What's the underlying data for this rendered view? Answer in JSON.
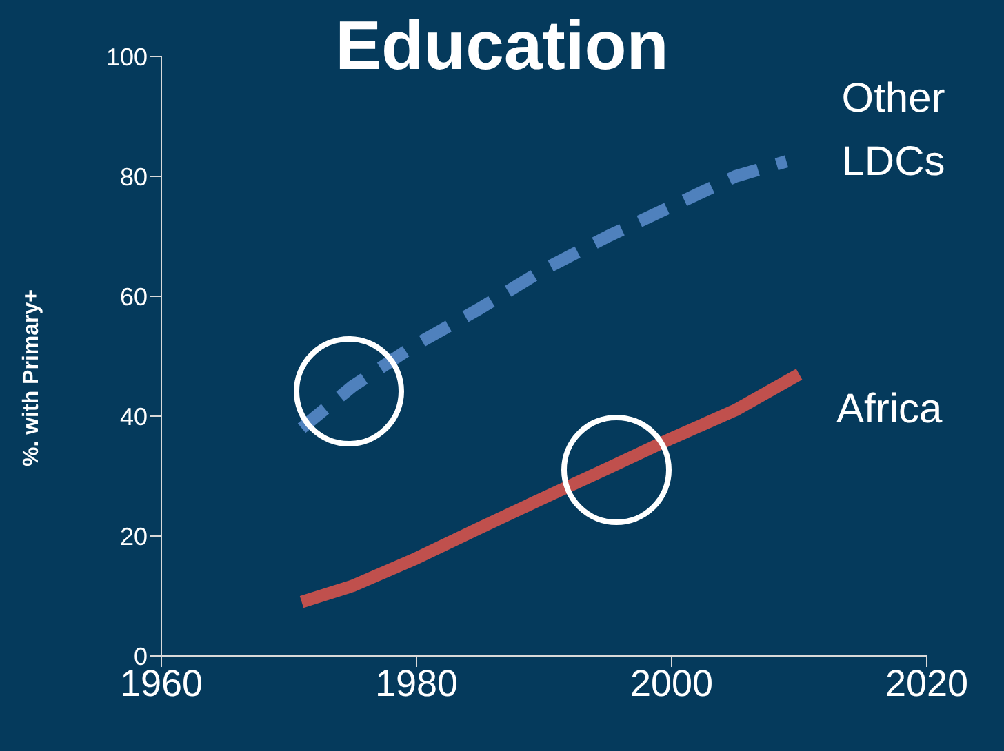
{
  "chart_data": {
    "type": "line",
    "title": "Education",
    "ylabel": "%. with Primary+",
    "xlim": [
      1960,
      2020
    ],
    "xticks": [
      1960,
      1980,
      2000,
      2020
    ],
    "ylim": [
      0,
      100
    ],
    "yticks": [
      0,
      20,
      40,
      60,
      80,
      100
    ],
    "series": [
      {
        "name": "Other LDCs",
        "color": "#4f81bd",
        "line_style": "dashed",
        "x": [
          1971,
          1975,
          1980,
          1985,
          1990,
          1995,
          2000,
          2005,
          2009
        ],
        "values": [
          38,
          45,
          52,
          58,
          64.5,
          70,
          75,
          80,
          82.5
        ]
      },
      {
        "name": "Africa",
        "color": "#c0504d",
        "line_style": "solid",
        "x": [
          1971,
          1975,
          1980,
          1985,
          1990,
          1995,
          2000,
          2005,
          2010
        ],
        "values": [
          9,
          11.7,
          16.3,
          21.4,
          26.4,
          31.3,
          36.3,
          41,
          47
        ]
      }
    ],
    "grid": false,
    "legend": false,
    "marker": "none"
  }
}
